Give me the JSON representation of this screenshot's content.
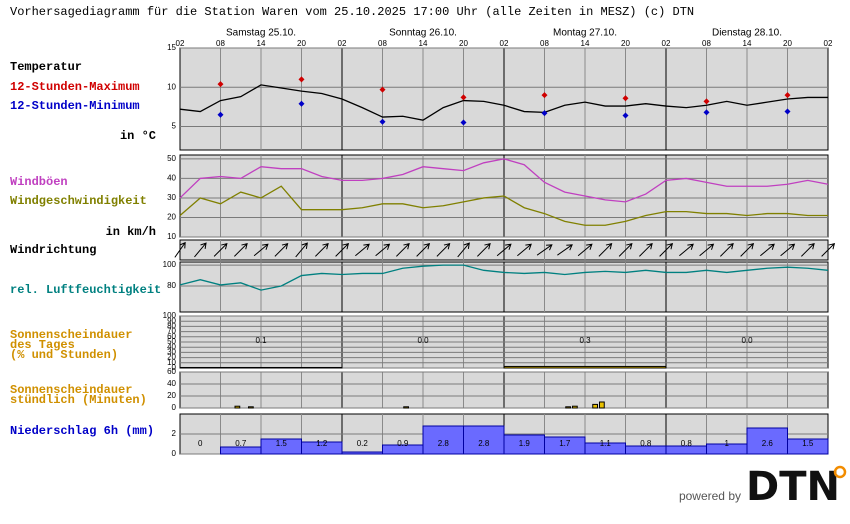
{
  "title": "Vorhersagediagramm für die Station Waren vom 25.10.2025 17:00 Uhr (alle Zeiten in MESZ)   (c) DTN",
  "time_axis": {
    "days": [
      "Samstag 25.10.",
      "Sonntag 26.10.",
      "Montag 27.10.",
      "Dienstag 28.10."
    ],
    "x_labels": [
      "02",
      "08",
      "14",
      "20",
      "02",
      "08",
      "14",
      "20",
      "02",
      "08",
      "14",
      "20",
      "02",
      "08",
      "14",
      "20",
      "02"
    ]
  },
  "branding": {
    "powered_by": "powered by",
    "logo": "DTN"
  },
  "chart_data": [
    {
      "type": "line",
      "unit_label": "in °C",
      "ylim": [
        2,
        15
      ],
      "yticks": [
        5,
        10,
        15
      ],
      "grid": true,
      "series": [
        {
          "name": "Temperatur",
          "color": "#000000",
          "kind": "line",
          "values": [
            7.2,
            6.9,
            8.3,
            8.8,
            10.3,
            9.9,
            9.5,
            9.2,
            8.5,
            7.4,
            6.2,
            6.3,
            5.8,
            7.4,
            8.3,
            8.2,
            7.7,
            6.9,
            6.8,
            7.7,
            8.1,
            7.6,
            7.6,
            7.9,
            7.6,
            7.4,
            7.7,
            8.2,
            7.7,
            8.1,
            8.5,
            8.7,
            8.7
          ]
        },
        {
          "name": "12-Stunden-Maximum",
          "color": "#d00000",
          "kind": "points",
          "values": [
            null,
            10.4,
            null,
            11.0,
            null,
            9.7,
            null,
            8.7,
            null,
            9.0,
            null,
            8.6,
            null,
            8.2,
            null,
            9.0,
            null
          ]
        },
        {
          "name": "12-Stunden-Minimum",
          "color": "#0000c8",
          "kind": "points",
          "values": [
            null,
            6.5,
            null,
            7.9,
            null,
            5.6,
            null,
            5.5,
            null,
            6.7,
            null,
            6.4,
            null,
            6.8,
            null,
            6.9,
            null
          ]
        }
      ]
    },
    {
      "type": "line",
      "unit_label": "in km/h",
      "ylim": [
        10,
        52
      ],
      "yticks": [
        10,
        20,
        30,
        40,
        50
      ],
      "grid": true,
      "series": [
        {
          "name": "Windböen",
          "color": "#c040c0",
          "kind": "line",
          "values": [
            30,
            40,
            41,
            40,
            46,
            45,
            45,
            41,
            39,
            39,
            40,
            42,
            46,
            45,
            44,
            48,
            50,
            47,
            38,
            33,
            31,
            29,
            28,
            32,
            39,
            40,
            38,
            36,
            36,
            36,
            37,
            39,
            37
          ]
        },
        {
          "name": "Windgeschwindigkeit",
          "color": "#808000",
          "kind": "line",
          "values": [
            21,
            30,
            27,
            33,
            30,
            36,
            24,
            24,
            24,
            25,
            27,
            27,
            25,
            26,
            28,
            30,
            31,
            25,
            22,
            18,
            16,
            16,
            18,
            21,
            23,
            23,
            22,
            22,
            21,
            22,
            22,
            21,
            21
          ]
        }
      ]
    },
    {
      "type": "arrows",
      "label": [
        "Windrichtung"
      ],
      "label_color": "#000000",
      "color": "#000000",
      "values": [
        215,
        220,
        225,
        225,
        230,
        225,
        220,
        225,
        225,
        230,
        230,
        225,
        225,
        225,
        220,
        225,
        230,
        230,
        235,
        235,
        230,
        225,
        225,
        225,
        225,
        230,
        230,
        225,
        225,
        230,
        230,
        225,
        225
      ]
    },
    {
      "type": "line",
      "ylim": [
        55,
        103
      ],
      "yticks": [
        80,
        100
      ],
      "grid": true,
      "series": [
        {
          "name": "rel. Luftfeuchtigkeit",
          "color": "#008080",
          "kind": "line",
          "values": [
            81,
            86,
            81,
            83,
            76,
            80,
            90,
            92,
            91,
            92,
            92,
            97,
            99,
            100,
            100,
            95,
            93,
            92,
            93,
            91,
            93,
            94,
            93,
            95,
            93,
            93,
            95,
            93,
            95,
            97,
            98,
            97,
            95
          ]
        }
      ]
    },
    {
      "type": "bar",
      "label": [
        "Sonnenscheindauer",
        "des Tages",
        "(% und Stunden)"
      ],
      "label_color": "#d09000",
      "color": "#e8c000",
      "ylim": [
        0,
        100
      ],
      "yticks": [
        0,
        10,
        20,
        30,
        40,
        50,
        60,
        70,
        80,
        90,
        100
      ],
      "grid": true,
      "values": [
        1,
        0,
        3,
        0
      ],
      "hours": [
        0.1,
        0,
        0.3,
        0
      ],
      "hours_labels": [
        "0.1",
        "0.0",
        "0.3",
        "0.0"
      ]
    },
    {
      "type": "bar",
      "label": [
        "Sonnenscheindauer",
        "stündlich (Minuten)"
      ],
      "label_color": "#d09000",
      "color": "#e8c000",
      "ylim": [
        0,
        60
      ],
      "yticks": [
        0,
        20,
        40,
        60
      ],
      "grid": true,
      "values": [
        0,
        0,
        0,
        0,
        0,
        0,
        0,
        0,
        3,
        0,
        2,
        0,
        0,
        0,
        0,
        0,
        0,
        0,
        0,
        0,
        0,
        0,
        0,
        0,
        0,
        0,
        0,
        0,
        0,
        0,
        0,
        0,
        0,
        2,
        0,
        0,
        0,
        0,
        0,
        0,
        0,
        0,
        0,
        0,
        0,
        0,
        0,
        0,
        0,
        0,
        0,
        0,
        0,
        0,
        0,
        0,
        0,
        2,
        3,
        0,
        0,
        6,
        10,
        0,
        0,
        0,
        0,
        0,
        0,
        0,
        0,
        0,
        0,
        0,
        0,
        0,
        0,
        0,
        0,
        0,
        0,
        0,
        0,
        0,
        0,
        0,
        0,
        0,
        0,
        0,
        0,
        0,
        0,
        0,
        0,
        0
      ]
    },
    {
      "type": "bar",
      "label": [
        "Niederschlag 6h (mm)"
      ],
      "label_color": "#0000c8",
      "color": "#6a6aff",
      "ylim": [
        0,
        4
      ],
      "yticks": [
        0,
        2
      ],
      "grid": true,
      "values": [
        0,
        0.7,
        1.5,
        1.2,
        0.2,
        0.9,
        2.8,
        2.8,
        1.9,
        1.7,
        1.1,
        0.8,
        0.8,
        1,
        2.6,
        1.5
      ]
    }
  ]
}
